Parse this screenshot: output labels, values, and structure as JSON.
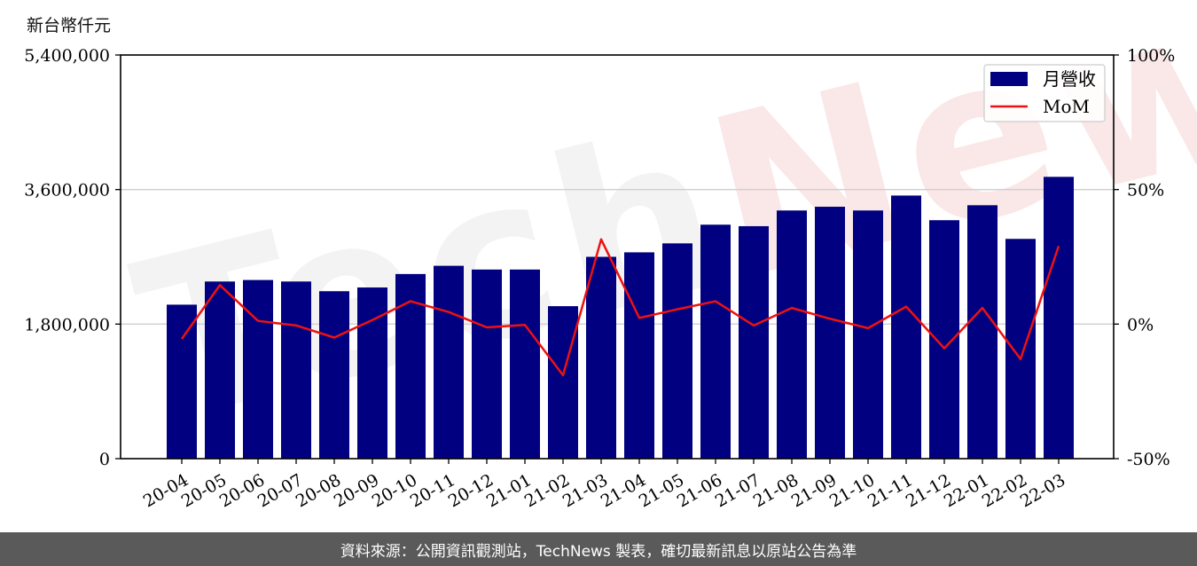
{
  "chart_data": {
    "type": "bar",
    "y_unit_label": "新台幣仟元",
    "categories": [
      "20-04",
      "20-05",
      "20-06",
      "20-07",
      "20-08",
      "20-09",
      "20-10",
      "20-11",
      "20-12",
      "21-01",
      "21-02",
      "21-03",
      "21-04",
      "21-05",
      "21-06",
      "21-07",
      "21-08",
      "21-09",
      "21-10",
      "21-11",
      "21-12",
      "22-01",
      "22-02",
      "22-03"
    ],
    "series": [
      {
        "name": "月營收",
        "type": "bar",
        "axis": "left",
        "color": "#000080",
        "values": [
          2060000,
          2370000,
          2390000,
          2370000,
          2240000,
          2290000,
          2470000,
          2580000,
          2530000,
          2530000,
          2040000,
          2700000,
          2760000,
          2880000,
          3130000,
          3110000,
          3320000,
          3370000,
          3320000,
          3520000,
          3190000,
          3390000,
          2940000,
          3770000
        ]
      },
      {
        "name": "MoM",
        "type": "line",
        "axis": "right",
        "color": "#ee1111",
        "values": [
          -5.5,
          14.5,
          1.2,
          -0.5,
          -5,
          1.5,
          8.5,
          4.5,
          -1.2,
          -0.3,
          -19,
          31.5,
          2.3,
          5.5,
          8.5,
          -0.5,
          6,
          2,
          -1.5,
          6.5,
          -9,
          6,
          -13,
          29
        ]
      }
    ],
    "y_left": {
      "ylim": [
        0,
        5400000
      ],
      "ticks": [
        "0",
        "1,800,000",
        "3,600,000",
        "5,400,000"
      ],
      "tick_values": [
        0,
        1800000,
        3600000,
        5400000
      ]
    },
    "y_right": {
      "ylim": [
        -50,
        100
      ],
      "ticks": [
        "-50%",
        "0%",
        "50%",
        "100%"
      ],
      "tick_values": [
        -50,
        0,
        50,
        100
      ]
    },
    "grid": "horizontal",
    "legend_position": "top-right",
    "legend": [
      {
        "label": "月營收",
        "kind": "bar",
        "color": "#000080"
      },
      {
        "label": "MoM",
        "kind": "line",
        "color": "#ee1111"
      }
    ]
  },
  "watermark": {
    "part1": "Tech",
    "part2": "News"
  },
  "footer": {
    "text": "資料來源：公開資訊觀測站，TechNews 製表，確切最新訊息以原站公告為準"
  }
}
